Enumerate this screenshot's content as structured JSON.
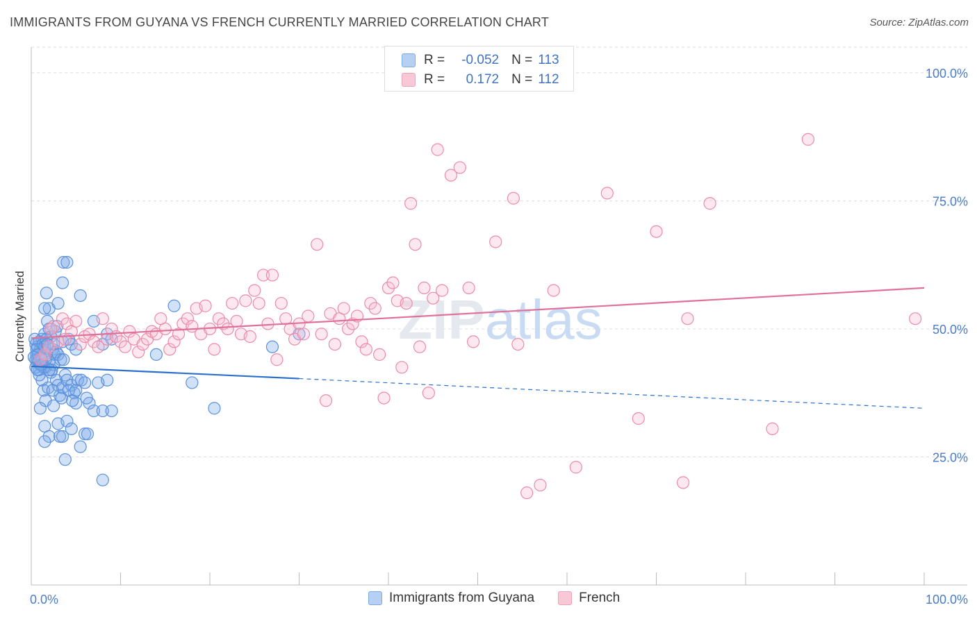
{
  "title": "IMMIGRANTS FROM GUYANA VS FRENCH CURRENTLY MARRIED CORRELATION CHART",
  "source": "Source: ZipAtlas.com",
  "watermark": "ZIPatlas",
  "legend": {
    "rows": [
      {
        "r_label": "R =",
        "r_value": "-0.052",
        "n_label": "N =",
        "n_value": "113",
        "color": "#7aaae8",
        "fill": "#b6d0f4"
      },
      {
        "r_label": "R =",
        "r_value": "0.172",
        "n_label": "N =",
        "n_value": "112",
        "color": "#f0a0b8",
        "fill": "#f8c8d6"
      }
    ]
  },
  "bottom_legend": [
    {
      "label": "Immigrants from Guyana",
      "color": "#7aaae8",
      "fill": "#b6d0f4"
    },
    {
      "label": "French",
      "color": "#f0a0b8",
      "fill": "#f8c8d6"
    }
  ],
  "chart_data": {
    "type": "scatter",
    "title": "IMMIGRANTS FROM GUYANA VS FRENCH CURRENTLY MARRIED CORRELATION CHART",
    "xlabel": "",
    "ylabel": "Currently Married",
    "xlim": [
      0,
      100
    ],
    "ylim": [
      0,
      105
    ],
    "x_tick_labels": [
      "0.0%",
      "100.0%"
    ],
    "y_ticks": [
      25,
      50,
      75,
      100
    ],
    "y_tick_labels": [
      "25.0%",
      "50.0%",
      "75.0%",
      "100.0%"
    ],
    "grid": true,
    "series": [
      {
        "name": "Immigrants from Guyana",
        "stroke": "#5a90dc",
        "fill": "rgba(122,170,232,0.35)",
        "trend_color": "#2a6fcc",
        "trend": {
          "x0": 0,
          "y0": 42.7,
          "x1": 30,
          "y1": 40.3,
          "dash_to_x": 100,
          "dash_to_y": 34.5
        },
        "points": [
          [
            0.5,
            47
          ],
          [
            0.6,
            45
          ],
          [
            0.7,
            44
          ],
          [
            0.8,
            43.5
          ],
          [
            0.9,
            42
          ],
          [
            1.0,
            46
          ],
          [
            1.1,
            44.5
          ],
          [
            1.2,
            48
          ],
          [
            1.3,
            43
          ],
          [
            1.4,
            45.5
          ],
          [
            0.5,
            44
          ],
          [
            0.7,
            46.5
          ],
          [
            0.9,
            47.5
          ],
          [
            1.5,
            49
          ],
          [
            1.6,
            42.5
          ],
          [
            1.8,
            51.5
          ],
          [
            2.0,
            50
          ],
          [
            2.2,
            48.5
          ],
          [
            2.4,
            46
          ],
          [
            2.6,
            45
          ],
          [
            1.7,
            57
          ],
          [
            2.0,
            54
          ],
          [
            1.5,
            54
          ],
          [
            3.0,
            55
          ],
          [
            3.5,
            59
          ],
          [
            3.6,
            63
          ],
          [
            4.0,
            63
          ],
          [
            5.5,
            56.5
          ],
          [
            1.2,
            40
          ],
          [
            1.4,
            38
          ],
          [
            1.6,
            36
          ],
          [
            1.9,
            38.5
          ],
          [
            2.2,
            41.5
          ],
          [
            2.5,
            43
          ],
          [
            2.8,
            40
          ],
          [
            3.0,
            39
          ],
          [
            3.2,
            37
          ],
          [
            3.5,
            38.5
          ],
          [
            3.8,
            41
          ],
          [
            4.0,
            40
          ],
          [
            4.5,
            39
          ],
          [
            4.8,
            37.5
          ],
          [
            5.0,
            35.5
          ],
          [
            5.2,
            40
          ],
          [
            5.6,
            40
          ],
          [
            6.0,
            39.5
          ],
          [
            6.5,
            35.5
          ],
          [
            7.0,
            34
          ],
          [
            7.5,
            39.5
          ],
          [
            8.0,
            34
          ],
          [
            8.5,
            40
          ],
          [
            9.0,
            34
          ],
          [
            1.0,
            34.5
          ],
          [
            1.5,
            31
          ],
          [
            2.0,
            29
          ],
          [
            2.5,
            35
          ],
          [
            3.0,
            31.5
          ],
          [
            3.2,
            29
          ],
          [
            3.5,
            29
          ],
          [
            4.0,
            32
          ],
          [
            4.5,
            30.5
          ],
          [
            5.5,
            27
          ],
          [
            6.0,
            29.5
          ],
          [
            6.3,
            29.5
          ],
          [
            1.5,
            28
          ],
          [
            3.8,
            24.5
          ],
          [
            8.0,
            20.5
          ],
          [
            2.8,
            45.5
          ],
          [
            3.5,
            47.5
          ],
          [
            4.2,
            48
          ],
          [
            4.5,
            47
          ],
          [
            5.0,
            46
          ],
          [
            7.0,
            51.5
          ],
          [
            8.0,
            47
          ],
          [
            8.5,
            49
          ],
          [
            9.0,
            48
          ],
          [
            14.0,
            45
          ],
          [
            16.0,
            54.5
          ],
          [
            18.0,
            39.5
          ],
          [
            20.5,
            34.5
          ],
          [
            27.0,
            46.5
          ],
          [
            30.0,
            49
          ],
          [
            0.4,
            48
          ],
          [
            0.6,
            46
          ],
          [
            0.8,
            45
          ],
          [
            1.0,
            43
          ],
          [
            1.2,
            44
          ],
          [
            1.3,
            47
          ],
          [
            1.5,
            46.5
          ],
          [
            1.7,
            48
          ],
          [
            2.0,
            43.5
          ],
          [
            2.3,
            42
          ],
          [
            2.5,
            47
          ],
          [
            2.7,
            49.5
          ],
          [
            3.0,
            45
          ],
          [
            3.3,
            44
          ],
          [
            0.5,
            42.5
          ],
          [
            0.9,
            41
          ],
          [
            1.4,
            42.5
          ],
          [
            2.0,
            42
          ],
          [
            3.4,
            36.5
          ],
          [
            4.2,
            38
          ],
          [
            4.6,
            36
          ],
          [
            5.0,
            38
          ],
          [
            6.2,
            36.5
          ],
          [
            2.4,
            38
          ],
          [
            1.8,
            47
          ],
          [
            1.1,
            43
          ],
          [
            0.7,
            42
          ],
          [
            3.6,
            44
          ],
          [
            2.9,
            50.5
          ],
          [
            0.3,
            44.5
          ],
          [
            1.6,
            44
          ]
        ]
      },
      {
        "name": "French",
        "stroke": "#ec8aa8",
        "fill": "rgba(248,190,208,0.35)",
        "trend_color": "#e0709a",
        "trend": {
          "x0": 0,
          "y0": 48.2,
          "x1": 100,
          "y1": 58.0
        },
        "points": [
          [
            1.0,
            44
          ],
          [
            1.5,
            45
          ],
          [
            2.0,
            46.5
          ],
          [
            2.5,
            50.5
          ],
          [
            3.0,
            47.5
          ],
          [
            3.5,
            52
          ],
          [
            4.0,
            51
          ],
          [
            4.5,
            49.5
          ],
          [
            5.0,
            51.5
          ],
          [
            5.5,
            47
          ],
          [
            6.0,
            48.5
          ],
          [
            6.5,
            49
          ],
          [
            7.0,
            47.5
          ],
          [
            7.5,
            46.5
          ],
          [
            8.0,
            52
          ],
          [
            8.5,
            48
          ],
          [
            9.0,
            50
          ],
          [
            9.5,
            48.5
          ],
          [
            10.0,
            47.5
          ],
          [
            10.5,
            46.5
          ],
          [
            11.0,
            49.5
          ],
          [
            11.5,
            48
          ],
          [
            12.0,
            45.5
          ],
          [
            12.5,
            47
          ],
          [
            13.0,
            48
          ],
          [
            13.5,
            49.5
          ],
          [
            14.0,
            49
          ],
          [
            14.5,
            52
          ],
          [
            15.0,
            50
          ],
          [
            15.5,
            46
          ],
          [
            16.0,
            47.5
          ],
          [
            16.5,
            49
          ],
          [
            17.0,
            51
          ],
          [
            17.5,
            52
          ],
          [
            18.0,
            50.5
          ],
          [
            18.5,
            54
          ],
          [
            19.0,
            49
          ],
          [
            19.5,
            54.5
          ],
          [
            20.0,
            50
          ],
          [
            20.5,
            46
          ],
          [
            21.0,
            52
          ],
          [
            21.5,
            51
          ],
          [
            22.0,
            50
          ],
          [
            22.5,
            55
          ],
          [
            23.0,
            51.5
          ],
          [
            23.5,
            49
          ],
          [
            24.0,
            55.5
          ],
          [
            24.5,
            48.5
          ],
          [
            25.0,
            57.5
          ],
          [
            25.5,
            55
          ],
          [
            26.0,
            60.5
          ],
          [
            26.5,
            51
          ],
          [
            27.0,
            60.5
          ],
          [
            27.5,
            44
          ],
          [
            28.0,
            55
          ],
          [
            28.5,
            52
          ],
          [
            29.0,
            50
          ],
          [
            29.5,
            48
          ],
          [
            30.0,
            51
          ],
          [
            30.5,
            49
          ],
          [
            31.0,
            52.5
          ],
          [
            32.0,
            66.5
          ],
          [
            32.5,
            49
          ],
          [
            33.0,
            36
          ],
          [
            33.5,
            53
          ],
          [
            34.0,
            47
          ],
          [
            34.5,
            52
          ],
          [
            35.0,
            54
          ],
          [
            35.5,
            50
          ],
          [
            36.0,
            51
          ],
          [
            36.5,
            52.5
          ],
          [
            37.0,
            47.5
          ],
          [
            37.5,
            46
          ],
          [
            38.0,
            55
          ],
          [
            38.5,
            54
          ],
          [
            39.0,
            45
          ],
          [
            39.5,
            36.5
          ],
          [
            40.0,
            58
          ],
          [
            40.5,
            59
          ],
          [
            41.0,
            55.5
          ],
          [
            41.5,
            42.5
          ],
          [
            42.0,
            55
          ],
          [
            42.5,
            74.5
          ],
          [
            43.0,
            66.5
          ],
          [
            43.5,
            46.5
          ],
          [
            44.0,
            58
          ],
          [
            44.5,
            37.5
          ],
          [
            45.0,
            56
          ],
          [
            45.5,
            85
          ],
          [
            46.0,
            57.5
          ],
          [
            47.0,
            80
          ],
          [
            48.0,
            81.5
          ],
          [
            49.0,
            58
          ],
          [
            49.5,
            47.5
          ],
          [
            52.0,
            67
          ],
          [
            54.0,
            75.5
          ],
          [
            54.5,
            47
          ],
          [
            55.5,
            18
          ],
          [
            57.0,
            19.5
          ],
          [
            58.5,
            57.5
          ],
          [
            61.0,
            23
          ],
          [
            64.5,
            76.5
          ],
          [
            68.0,
            32.5
          ],
          [
            70.0,
            69
          ],
          [
            73.0,
            20
          ],
          [
            73.5,
            52
          ],
          [
            76.0,
            74.5
          ],
          [
            83.0,
            30.5
          ],
          [
            87.0,
            87
          ],
          [
            99.0,
            52
          ],
          [
            2.2,
            50
          ],
          [
            3.8,
            48
          ]
        ]
      }
    ]
  }
}
